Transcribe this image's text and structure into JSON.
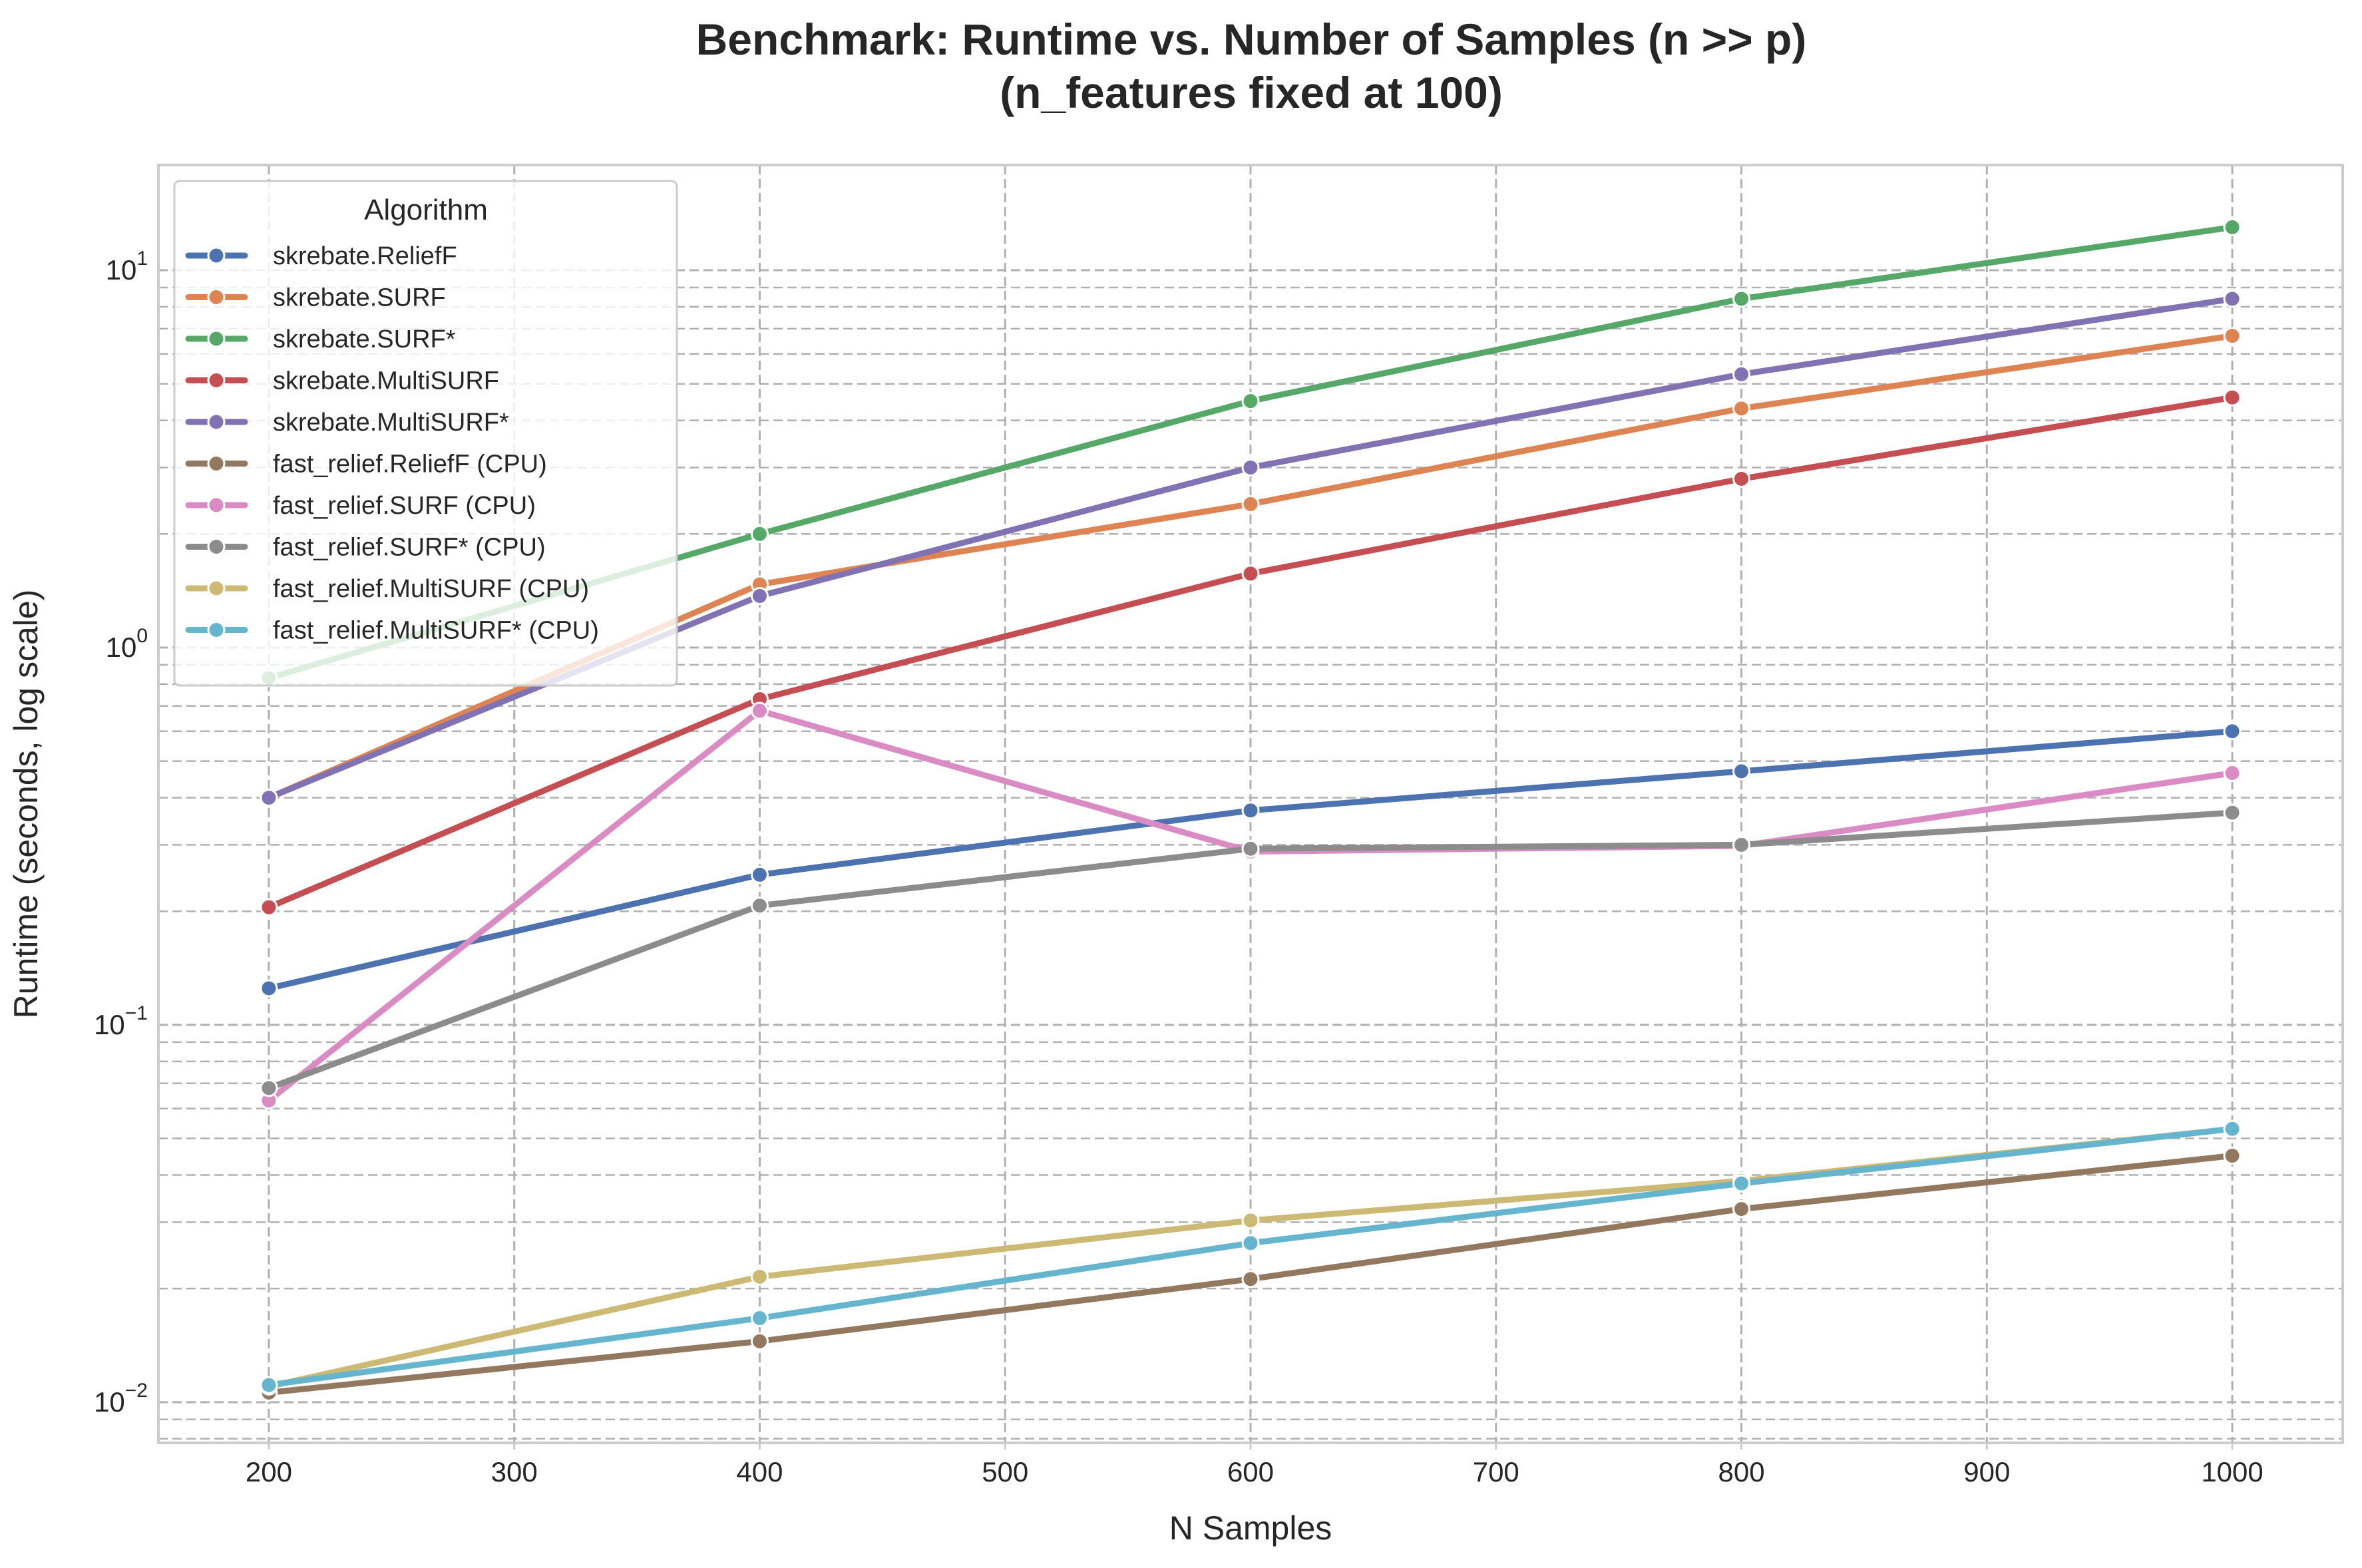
{
  "chart_data": {
    "type": "line",
    "title": "Benchmark: Runtime vs. Number of Samples (n >> p)",
    "subtitle": "(n_features fixed at 100)",
    "xlabel": "N Samples",
    "ylabel": "Runtime (seconds, log scale)",
    "x_ticks": [
      200,
      300,
      400,
      500,
      600,
      700,
      800,
      900,
      1000
    ],
    "xlim": [
      155,
      1045
    ],
    "ylim": [
      0.0078,
      19
    ],
    "y_scale": "log",
    "y_ticks": [
      {
        "base": "10",
        "exp": "1",
        "value": 10
      },
      {
        "base": "10",
        "exp": "0",
        "value": 1
      },
      {
        "base": "10",
        "exp": "−1",
        "value": 0.1
      },
      {
        "base": "10",
        "exp": "−2",
        "value": 0.01
      }
    ],
    "grid": true,
    "legend_title": "Algorithm",
    "legend_position": "top-left",
    "x": [
      200,
      400,
      600,
      800,
      1000
    ],
    "series": [
      {
        "name": "skrebate.ReliefF",
        "color": "#4c72b0",
        "values": [
          0.125,
          0.25,
          0.37,
          0.47,
          0.6
        ]
      },
      {
        "name": "skrebate.SURF",
        "color": "#dd8452",
        "values": [
          0.4,
          1.47,
          2.4,
          4.3,
          6.7
        ]
      },
      {
        "name": "skrebate.SURF*",
        "color": "#55a868",
        "values": [
          0.83,
          2.0,
          4.5,
          8.4,
          13.0
        ]
      },
      {
        "name": "skrebate.MultiSURF",
        "color": "#c44e52",
        "values": [
          0.205,
          0.73,
          1.57,
          2.8,
          4.6
        ]
      },
      {
        "name": "skrebate.MultiSURF*",
        "color": "#8172b3",
        "values": [
          0.4,
          1.37,
          3.0,
          5.3,
          8.4
        ]
      },
      {
        "name": "fast_relief.ReliefF (CPU)",
        "color": "#937860",
        "values": [
          0.0106,
          0.0145,
          0.0212,
          0.0325,
          0.045
        ]
      },
      {
        "name": "fast_relief.SURF (CPU)",
        "color": "#da8bc3",
        "values": [
          0.063,
          0.68,
          0.288,
          0.298,
          0.465
        ]
      },
      {
        "name": "fast_relief.SURF* (CPU)",
        "color": "#8c8c8c",
        "values": [
          0.068,
          0.207,
          0.293,
          0.3,
          0.365
        ]
      },
      {
        "name": "fast_relief.MultiSURF (CPU)",
        "color": "#ccb974",
        "values": [
          0.011,
          0.0215,
          0.0303,
          0.0386,
          0.053
        ]
      },
      {
        "name": "fast_relief.MultiSURF* (CPU)",
        "color": "#64b5cd",
        "values": [
          0.0111,
          0.0167,
          0.0264,
          0.038,
          0.053
        ]
      }
    ]
  }
}
